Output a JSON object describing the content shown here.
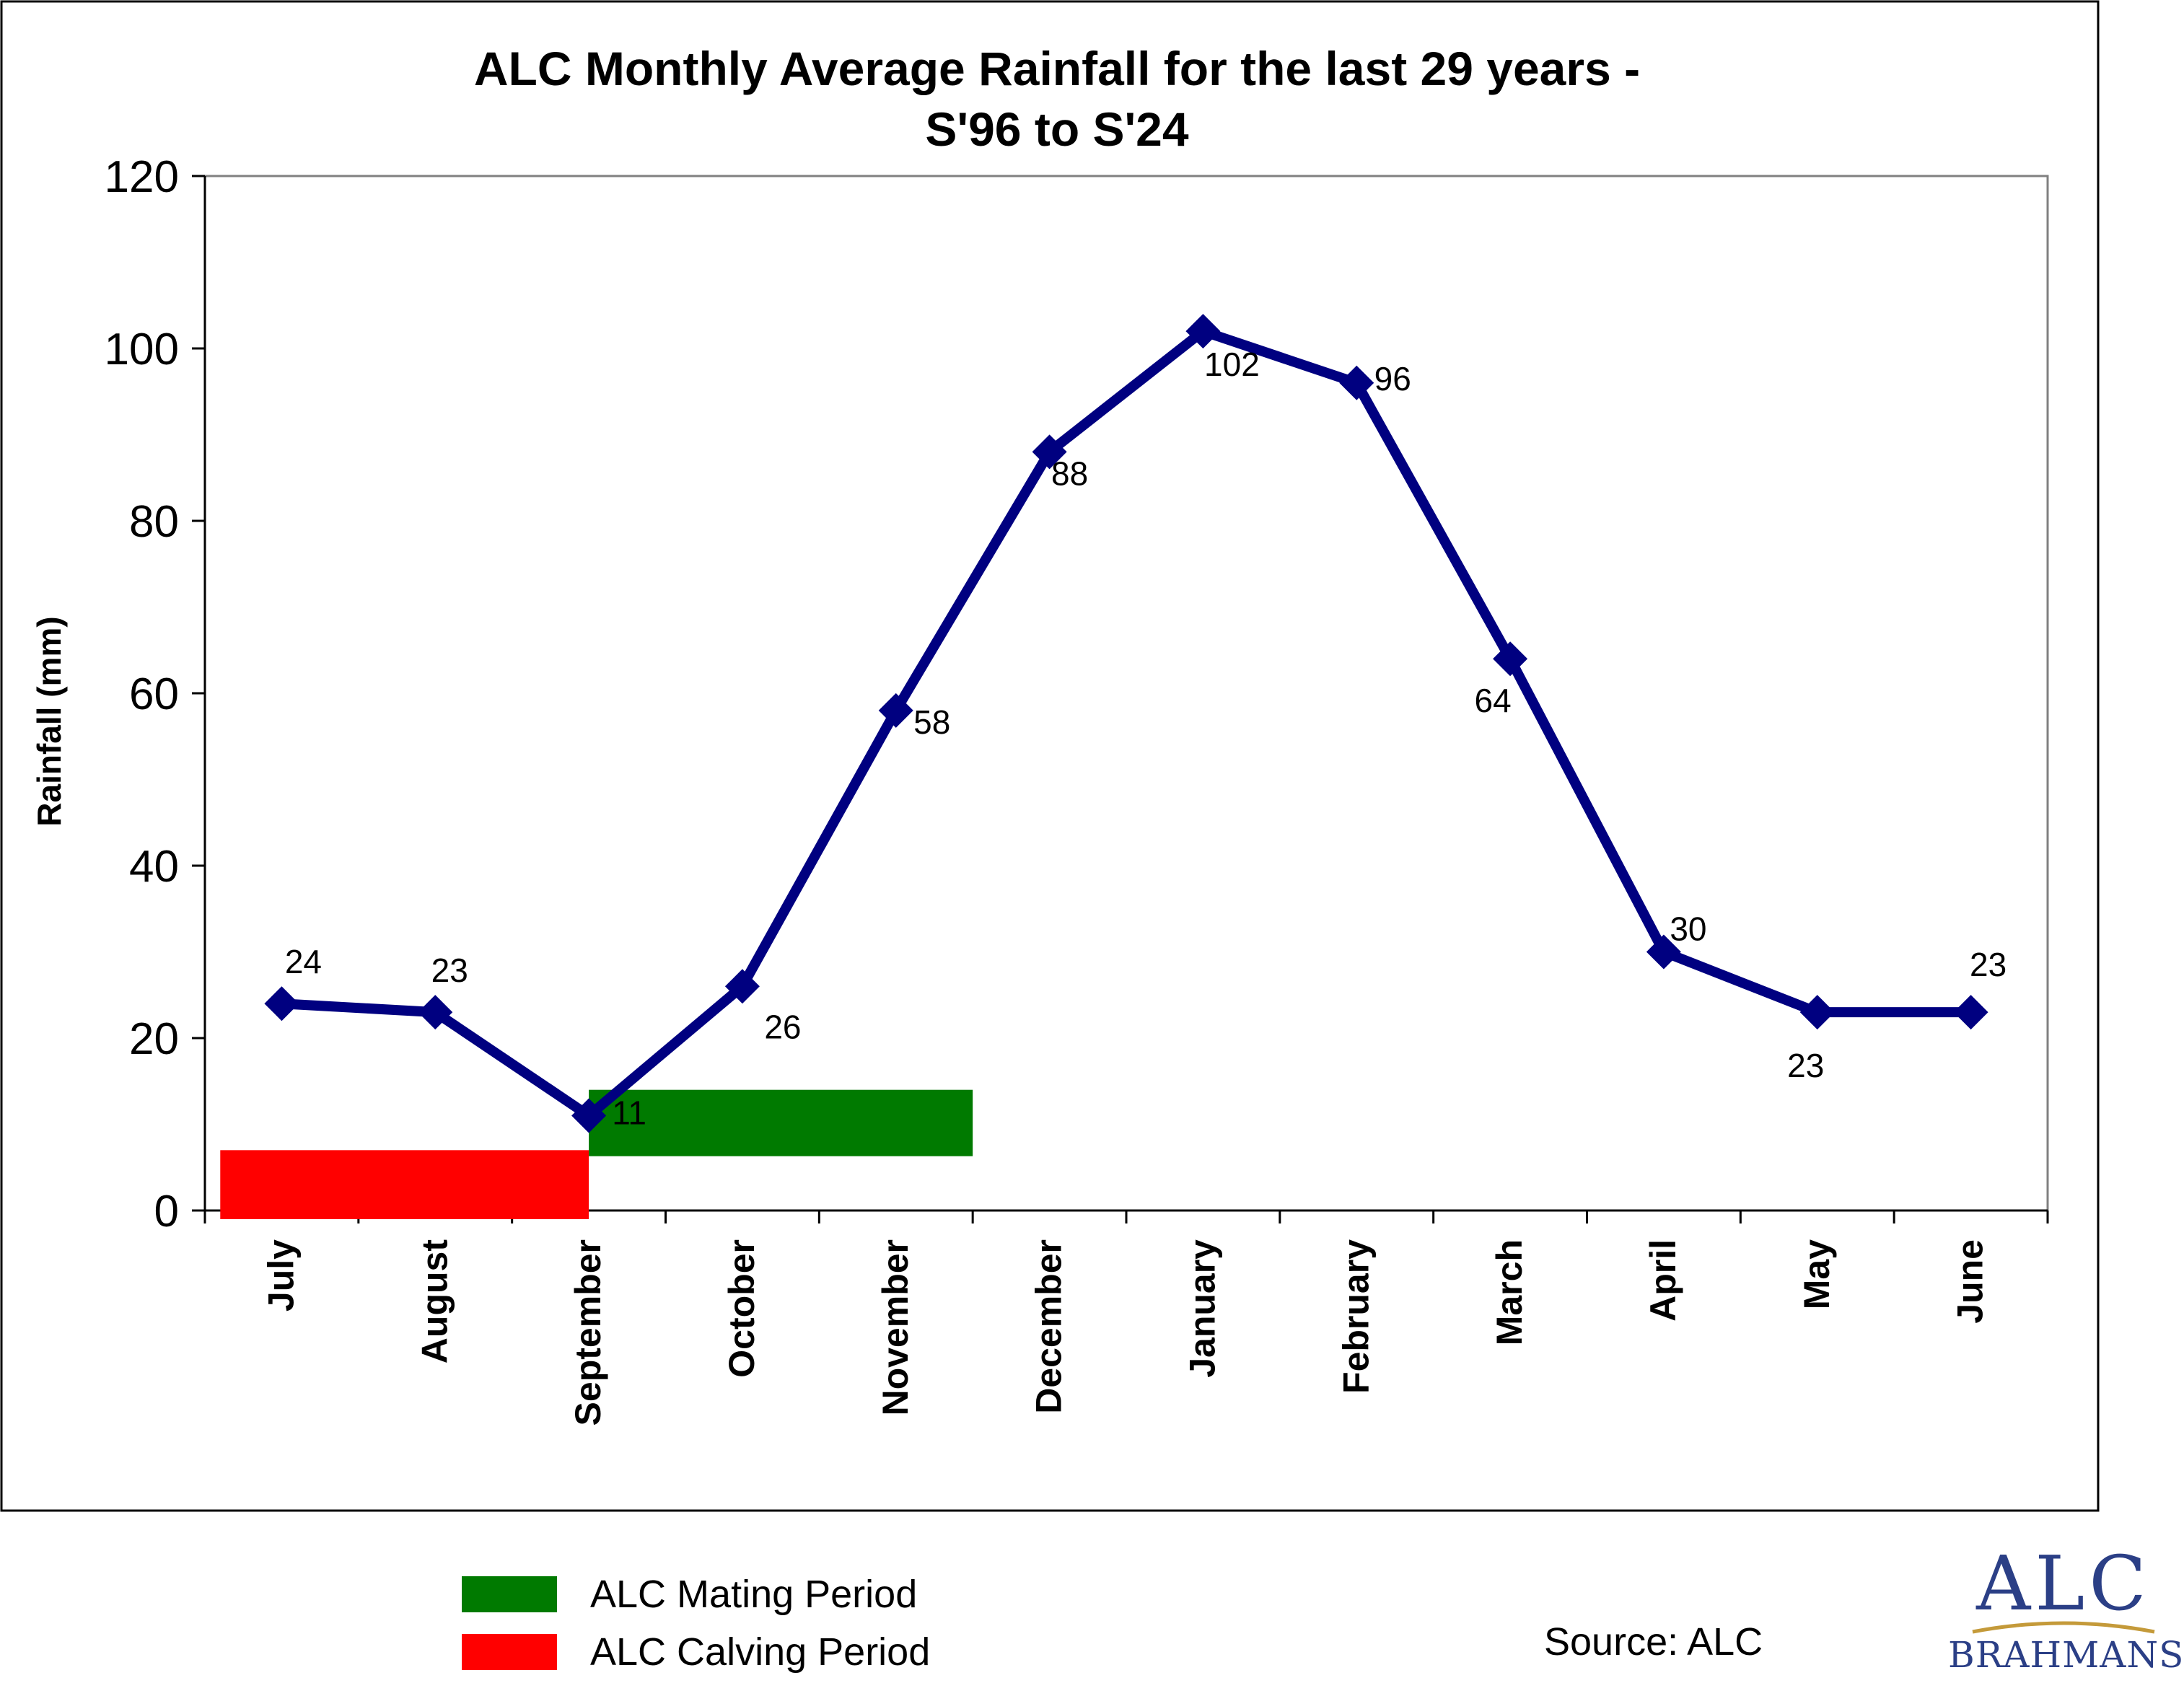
{
  "chart_data": {
    "type": "line",
    "title": "ALC Monthly Average Rainfall for the last 29 years -",
    "subtitle": "S'96 to S'24",
    "ylabel": "Rainfall (mm)",
    "xlabel": "",
    "ylim": [
      0,
      120
    ],
    "yticks": [
      "0",
      "20",
      "40",
      "60",
      "80",
      "100",
      "120"
    ],
    "ytick_values": [
      0,
      20,
      40,
      60,
      80,
      100,
      120
    ],
    "categories": [
      "July",
      "August",
      "September",
      "October",
      "November",
      "December",
      "January",
      "February",
      "March",
      "April",
      "May",
      "June"
    ],
    "series": [
      {
        "values": [
          24,
          23,
          11,
          26,
          58,
          88,
          102,
          96,
          64,
          30,
          23,
          23
        ],
        "labels": [
          "24",
          "23",
          "11",
          "26",
          "58",
          "88",
          "102",
          "96",
          "64",
          "30",
          "23",
          "23"
        ],
        "color": "#000080"
      }
    ],
    "periods": [
      {
        "name": "ALC Calving Period",
        "start_category": 0.1,
        "end_category": 2.5,
        "y_from": -1,
        "y_to": 7,
        "color": "#ff0000"
      },
      {
        "name": "ALC Mating Period",
        "start_category": 2.5,
        "end_category": 5.0,
        "y_from": 6.3,
        "y_to": 14,
        "color": "#007a00"
      }
    ],
    "grid": false,
    "legend": "bottom-left"
  },
  "legend": {
    "items": [
      {
        "label": "ALC Mating Period",
        "color": "#007a00"
      },
      {
        "label": "ALC Calving Period",
        "color": "#ff0000"
      }
    ]
  },
  "source": "Source: ALC",
  "logo": {
    "main": "ALC",
    "sub": "BRAHMANS"
  }
}
